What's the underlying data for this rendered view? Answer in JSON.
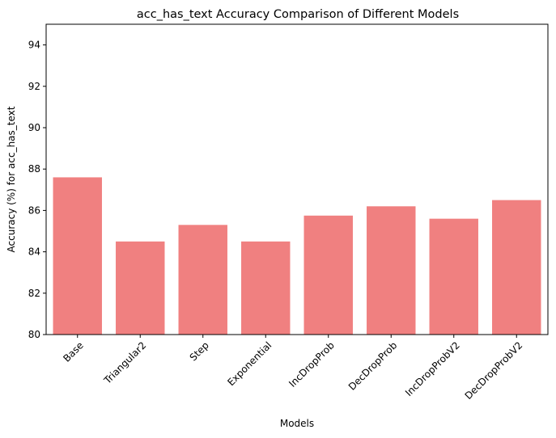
{
  "chart_data": {
    "type": "bar",
    "title": "acc_has_text Accuracy Comparison of Different Models",
    "xlabel": "Models",
    "ylabel": "Accuracy (%) for acc_has_text",
    "categories": [
      "Base",
      "Triangular2",
      "Step",
      "Exponential",
      "IncDropProb",
      "DecDropProb",
      "IncDropProbV2",
      "DecDropProbV2"
    ],
    "values": [
      87.6,
      84.5,
      85.3,
      84.5,
      85.75,
      86.2,
      85.6,
      86.5
    ],
    "ylim": [
      80,
      95
    ],
    "yticks": [
      80,
      82,
      84,
      86,
      88,
      90,
      92,
      94
    ],
    "bar_color": "#f08080",
    "grid": false,
    "legend": "none"
  }
}
